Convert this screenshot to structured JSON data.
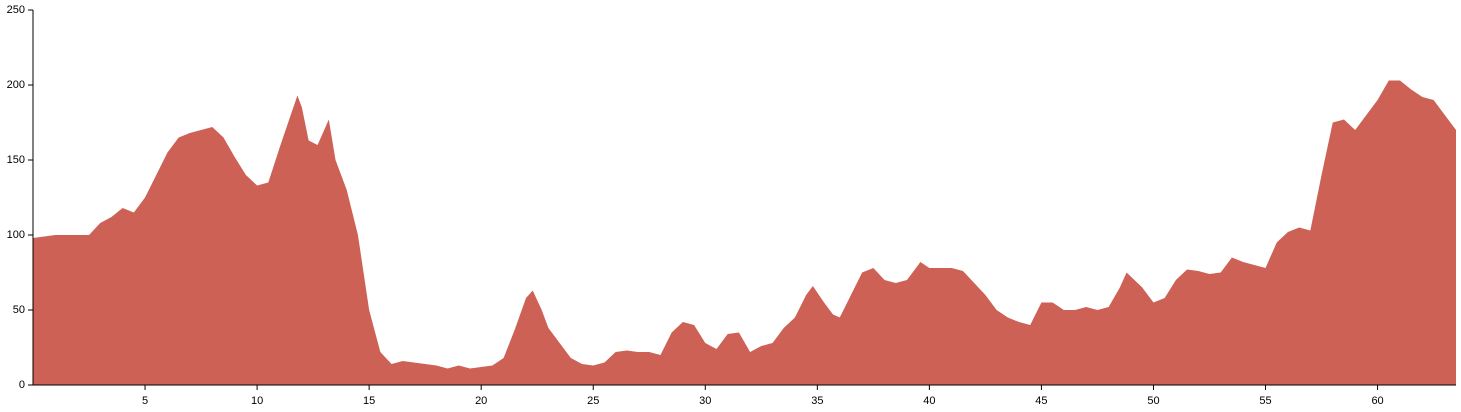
{
  "chart_data": {
    "type": "area",
    "color": "#cd6155",
    "x": [
      0,
      1,
      1.5,
      2,
      2.5,
      3,
      3.5,
      4,
      4.5,
      5,
      5.5,
      6,
      6.5,
      7,
      7.5,
      8,
      8.5,
      9,
      9.5,
      10,
      10.5,
      11,
      11.5,
      11.8,
      12,
      12.3,
      12.7,
      13.2,
      13.5,
      14,
      14.5,
      15,
      15.5,
      16,
      16.5,
      17,
      17.5,
      18,
      18.5,
      19,
      19.5,
      20,
      20.5,
      21,
      21.5,
      22,
      22.3,
      22.7,
      23,
      23.5,
      24,
      24.5,
      25,
      25.5,
      26,
      26.5,
      27,
      27.5,
      28,
      28.5,
      29,
      29.5,
      30,
      30.5,
      31,
      31.5,
      32,
      32.5,
      33,
      33.5,
      34,
      34.5,
      34.8,
      35.3,
      35.7,
      36,
      36.5,
      37,
      37.5,
      38,
      38.5,
      39,
      39.6,
      40,
      41,
      41.5,
      42,
      42.5,
      43,
      43.5,
      44,
      44.5,
      45,
      45.5,
      46,
      46.5,
      47,
      47.5,
      48,
      48.5,
      48.8,
      49.5,
      50,
      50.5,
      51,
      51.5,
      52,
      52.5,
      53,
      53.5,
      54,
      54.5,
      55,
      55.5,
      56,
      56.5,
      57,
      57.5,
      58,
      58.5,
      59,
      59.5,
      60,
      60.5,
      61,
      61.5,
      62,
      62.5,
      63,
      63.5
    ],
    "values": [
      98,
      100,
      100,
      100,
      100,
      108,
      112,
      118,
      115,
      125,
      140,
      155,
      165,
      168,
      170,
      172,
      165,
      152,
      140,
      133,
      135,
      158,
      180,
      193,
      185,
      163,
      160,
      177,
      150,
      130,
      100,
      50,
      22,
      14,
      16,
      15,
      14,
      13,
      11,
      13,
      11,
      12,
      13,
      18,
      37,
      58,
      63,
      50,
      38,
      28,
      18,
      14,
      13,
      15,
      22,
      23,
      22,
      22,
      20,
      35,
      42,
      40,
      28,
      24,
      34,
      35,
      22,
      26,
      28,
      38,
      45,
      60,
      66,
      55,
      47,
      45,
      60,
      75,
      78,
      70,
      68,
      70,
      82,
      78,
      78,
      76,
      68,
      60,
      50,
      45,
      42,
      40,
      55,
      55,
      50,
      50,
      52,
      50,
      52,
      65,
      75,
      65,
      55,
      58,
      70,
      77,
      76,
      74,
      75,
      85,
      82,
      80,
      78,
      95,
      102,
      105,
      103,
      140,
      175,
      177,
      170,
      180,
      190,
      203,
      203,
      197,
      192,
      190,
      180,
      170
    ],
    "xlim": [
      0,
      63.5
    ],
    "xticks": [
      5,
      10,
      15,
      20,
      25,
      30,
      35,
      40,
      45,
      50,
      55,
      60
    ],
    "ylim": [
      0,
      250
    ],
    "yticks": [
      0,
      50,
      100,
      150,
      200,
      250
    ]
  }
}
